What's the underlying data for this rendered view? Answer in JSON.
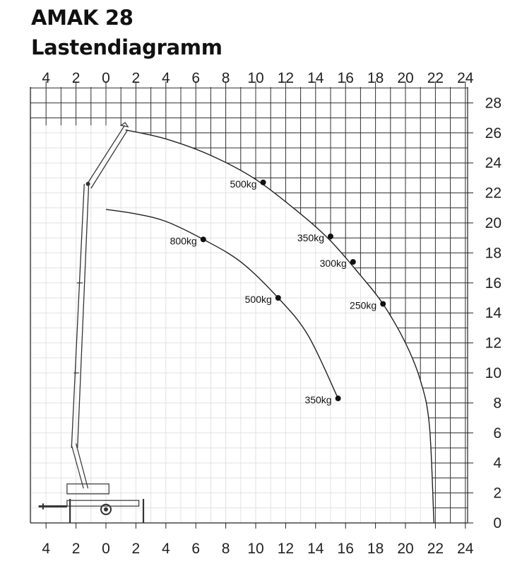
{
  "title": "AMAK 28",
  "subtitle": "Lastendiagramm",
  "chart_data": {
    "type": "line",
    "xlim": [
      -5,
      24.5
    ],
    "ylim": [
      0,
      28
    ],
    "x_ticks": [
      -4,
      -2,
      0,
      2,
      4,
      6,
      8,
      10,
      12,
      14,
      16,
      18,
      20,
      22,
      24
    ],
    "x_tick_labels": [
      "4",
      "2",
      "0",
      "2",
      "4",
      "6",
      "8",
      "10",
      "12",
      "14",
      "16",
      "18",
      "20",
      "22",
      "24"
    ],
    "y_ticks": [
      0,
      2,
      4,
      6,
      8,
      10,
      12,
      14,
      16,
      18,
      20,
      22,
      24,
      26,
      28
    ],
    "y_tick_labels": [
      "0",
      "2",
      "4",
      "6",
      "8",
      "10",
      "12",
      "14",
      "16",
      "18",
      "20",
      "22",
      "24",
      "26",
      "28"
    ],
    "grid": true,
    "series": [
      {
        "x": [
          1.3,
          4,
          7,
          10,
          13,
          15,
          17,
          18.5,
          20,
          21,
          21.6,
          21.9
        ],
        "y": [
          26.2,
          25.6,
          24.5,
          22.9,
          20.6,
          18.8,
          16.5,
          14.6,
          12.0,
          9.5,
          6.5,
          0
        ]
      },
      {
        "x": [
          0,
          2,
          4,
          6.5,
          9,
          11.5,
          13.5,
          15.5
        ],
        "y": [
          20.9,
          20.6,
          20.1,
          18.9,
          17.4,
          15.0,
          12.5,
          8.3
        ]
      }
    ],
    "points": [
      {
        "x": 10.5,
        "y": 22.7,
        "label": "500kg"
      },
      {
        "x": 15,
        "y": 19.1,
        "label": "350kg"
      },
      {
        "x": 16.5,
        "y": 17.4,
        "label": "300kg"
      },
      {
        "x": 18.5,
        "y": 14.6,
        "label": "250kg"
      },
      {
        "x": 6.5,
        "y": 18.9,
        "label": "800kg"
      },
      {
        "x": 11.5,
        "y": 15.0,
        "label": "500kg"
      },
      {
        "x": 15.5,
        "y": 8.3,
        "label": "350kg"
      }
    ]
  }
}
